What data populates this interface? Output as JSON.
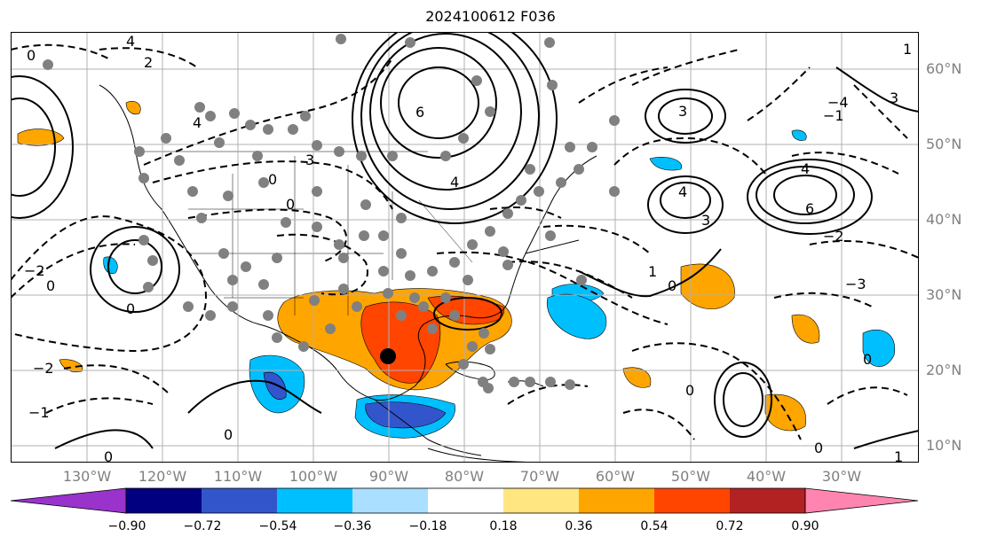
{
  "title": "2024100612 F036",
  "lat_labels": [
    "60°N",
    "50°N",
    "40°N",
    "30°N",
    "20°N",
    "10°N"
  ],
  "lon_labels": [
    "130°W",
    "120°W",
    "110°W",
    "100°W",
    "90°W",
    "80°W",
    "70°W",
    "60°W",
    "50°W",
    "40°W",
    "30°W"
  ],
  "colorbar": {
    "labels": [
      "−0.90",
      "−0.72",
      "−0.54",
      "−0.36",
      "−0.18",
      "0.18",
      "0.36",
      "0.54",
      "0.72",
      "0.90"
    ],
    "colors": [
      "#9933cc",
      "#000080",
      "#3355cc",
      "#00bfff",
      "#aadfff",
      "#ffffff",
      "#ffe680",
      "#ffa500",
      "#ff4500",
      "#b22222",
      "#ff85b0"
    ]
  },
  "contour_labels": [
    "0",
    "2",
    "4",
    "6",
    "3",
    "1",
    "−1",
    "−2",
    "−3",
    "−4"
  ],
  "marker": {
    "name": "storm-center",
    "lon": "90°W",
    "lat": "21°N"
  }
}
